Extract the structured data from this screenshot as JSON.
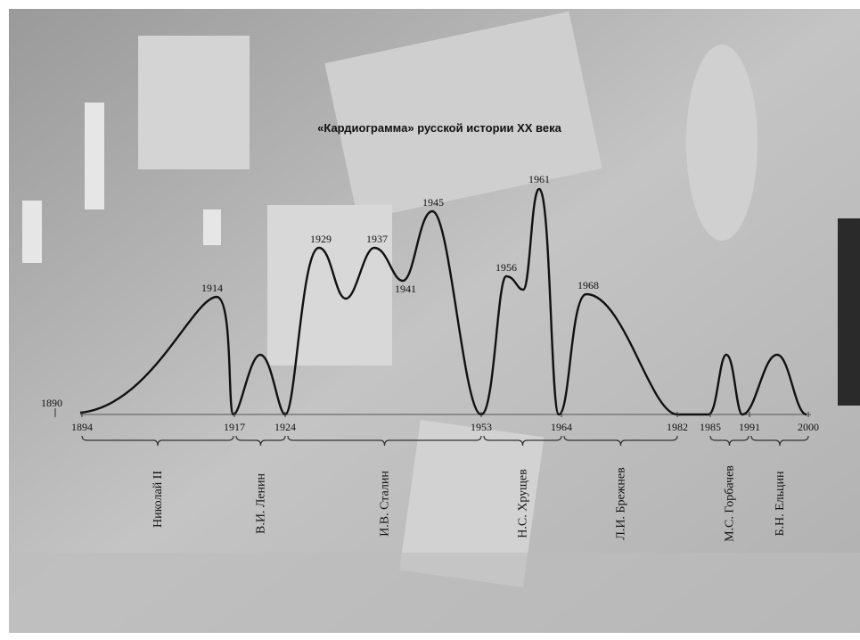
{
  "title": "«Кардиограмма» русской истории XX века",
  "start_year": "1890",
  "peak_labels": [
    "1914",
    "1929",
    "1937",
    "1941",
    "1945",
    "1956",
    "1961",
    "1968"
  ],
  "axis_labels": [
    "1894",
    "1917",
    "1924",
    "1953",
    "1964",
    "1982",
    "1985",
    "1991",
    "2000"
  ],
  "rulers": [
    "Николай II",
    "В.И. Ленин",
    "И.В. Сталин",
    "Н.С. Хрущев",
    "Л.И. Брежнев",
    "М.С. Горбачев",
    "Б.Н. Ельцин"
  ]
}
